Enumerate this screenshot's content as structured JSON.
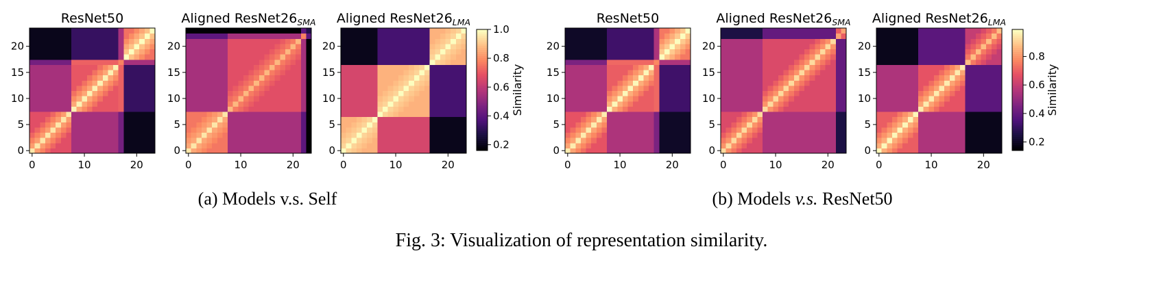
{
  "figure": {
    "caption": "Fig. 3: Visualization of representation similarity.",
    "subcaptions": [
      {
        "id": "a",
        "prefix": "(a) Models ",
        "vs": "v.s.",
        "vs_italic": false,
        "suffix": " Self"
      },
      {
        "id": "b",
        "prefix": "(b) Models ",
        "vs": "v.s.",
        "vs_italic": true,
        "suffix": " ResNet50"
      }
    ]
  },
  "colormap": "magma",
  "chart_data": [
    {
      "type": "heatmap",
      "panel": "a",
      "title": "ResNet50",
      "subscript": "",
      "x_ticks": [
        0,
        10,
        20
      ],
      "y_ticks": [
        0,
        5,
        10,
        15,
        20
      ],
      "n": 24,
      "blocks": [
        {
          "range": [
            0,
            7
          ],
          "value": 0.88
        },
        {
          "range": [
            8,
            16
          ],
          "value": 0.9
        },
        {
          "range": [
            17,
            17
          ],
          "value": 0.7
        },
        {
          "range": [
            18,
            23
          ],
          "value": 0.95
        }
      ],
      "cross": [
        {
          "a": 0,
          "b": 1,
          "value": 0.55
        },
        {
          "a": 0,
          "b": 2,
          "value": 0.45
        },
        {
          "a": 0,
          "b": 3,
          "value": 0.2
        },
        {
          "a": 1,
          "b": 2,
          "value": 0.72
        },
        {
          "a": 1,
          "b": 3,
          "value": 0.32
        },
        {
          "a": 2,
          "b": 3,
          "value": 0.55
        }
      ],
      "gradient": 0.05
    },
    {
      "type": "heatmap",
      "panel": "a",
      "title": "Aligned ResNet26",
      "subscript": "SMA",
      "x_ticks": [
        0,
        10,
        20
      ],
      "y_ticks": [
        0,
        5,
        10,
        15,
        20
      ],
      "n": 24,
      "blocks": [
        {
          "range": [
            0,
            7
          ],
          "value": 0.88
        },
        {
          "range": [
            8,
            21
          ],
          "value": 0.8
        },
        {
          "range": [
            22,
            22
          ],
          "value": 0.7
        },
        {
          "range": [
            23,
            23
          ],
          "value": 0.2
        }
      ],
      "cross": [
        {
          "a": 0,
          "b": 1,
          "value": 0.55
        },
        {
          "a": 0,
          "b": 2,
          "value": 0.4
        },
        {
          "a": 0,
          "b": 3,
          "value": 0.15
        },
        {
          "a": 1,
          "b": 2,
          "value": 0.55
        },
        {
          "a": 1,
          "b": 3,
          "value": 0.15
        },
        {
          "a": 2,
          "b": 3,
          "value": 0.4
        }
      ],
      "gradient": 0.03
    },
    {
      "type": "heatmap",
      "panel": "a",
      "title": "Aligned ResNet26",
      "subscript": "LMA",
      "x_ticks": [
        0,
        10,
        20
      ],
      "y_ticks": [
        0,
        5,
        10,
        15,
        20
      ],
      "n": 24,
      "blocks": [
        {
          "range": [
            0,
            6
          ],
          "value": 0.95
        },
        {
          "range": [
            7,
            16
          ],
          "value": 0.95
        },
        {
          "range": [
            17,
            23
          ],
          "value": 0.95
        }
      ],
      "cross": [
        {
          "a": 0,
          "b": 1,
          "value": 0.65
        },
        {
          "a": 0,
          "b": 2,
          "value": 0.2
        },
        {
          "a": 1,
          "b": 2,
          "value": 0.35
        }
      ],
      "gradient": 0.02
    },
    {
      "type": "heatmap",
      "panel": "b",
      "title": "ResNet50",
      "subscript": "",
      "x_ticks": [
        0,
        10,
        20
      ],
      "y_ticks": [
        0,
        5,
        10,
        15,
        20
      ],
      "n": 24,
      "blocks": [
        {
          "range": [
            0,
            7
          ],
          "value": 0.88
        },
        {
          "range": [
            8,
            16
          ],
          "value": 0.9
        },
        {
          "range": [
            17,
            17
          ],
          "value": 0.7
        },
        {
          "range": [
            18,
            23
          ],
          "value": 0.95
        }
      ],
      "cross": [
        {
          "a": 0,
          "b": 1,
          "value": 0.55
        },
        {
          "a": 0,
          "b": 2,
          "value": 0.45
        },
        {
          "a": 0,
          "b": 3,
          "value": 0.2
        },
        {
          "a": 1,
          "b": 2,
          "value": 0.72
        },
        {
          "a": 1,
          "b": 3,
          "value": 0.32
        },
        {
          "a": 2,
          "b": 3,
          "value": 0.55
        }
      ],
      "gradient": 0.05
    },
    {
      "type": "heatmap",
      "panel": "b",
      "title": "Aligned ResNet26",
      "subscript": "SMA",
      "x_ticks": [
        0,
        10,
        20
      ],
      "y_ticks": [
        0,
        5,
        10,
        15,
        20
      ],
      "n": 24,
      "blocks": [
        {
          "range": [
            0,
            7
          ],
          "value": 0.85
        },
        {
          "range": [
            8,
            21
          ],
          "value": 0.85
        },
        {
          "range": [
            22,
            23
          ],
          "value": 0.75
        }
      ],
      "cross": [
        {
          "a": 0,
          "b": 1,
          "value": 0.55
        },
        {
          "a": 0,
          "b": 2,
          "value": 0.25
        },
        {
          "a": 1,
          "b": 2,
          "value": 0.4
        }
      ],
      "gradient": 0.05
    },
    {
      "type": "heatmap",
      "panel": "b",
      "title": "Aligned ResNet26",
      "subscript": "LMA",
      "x_ticks": [
        0,
        10,
        20
      ],
      "y_ticks": [
        0,
        5,
        10,
        15,
        20
      ],
      "n": 24,
      "blocks": [
        {
          "range": [
            0,
            7
          ],
          "value": 0.9
        },
        {
          "range": [
            8,
            16
          ],
          "value": 0.88
        },
        {
          "range": [
            17,
            23
          ],
          "value": 0.8
        }
      ],
      "cross": [
        {
          "a": 0,
          "b": 1,
          "value": 0.55
        },
        {
          "a": 0,
          "b": 2,
          "value": 0.18
        },
        {
          "a": 1,
          "b": 2,
          "value": 0.38
        }
      ],
      "gradient": 0.05
    }
  ],
  "colorbars": [
    {
      "panel": "a",
      "label": "Similarity",
      "range": [
        0.16,
        1.0
      ],
      "ticks": [
        0.2,
        0.4,
        0.6,
        0.8,
        1.0
      ],
      "tick_labels": [
        "0.2",
        "0.4",
        "0.6",
        "0.8",
        "1.0"
      ]
    },
    {
      "panel": "b",
      "label": "Similarity",
      "range": [
        0.14,
        0.99
      ],
      "ticks": [
        0.2,
        0.4,
        0.6,
        0.8
      ],
      "tick_labels": [
        "0.2",
        "0.4",
        "0.6",
        "0.8"
      ]
    }
  ]
}
